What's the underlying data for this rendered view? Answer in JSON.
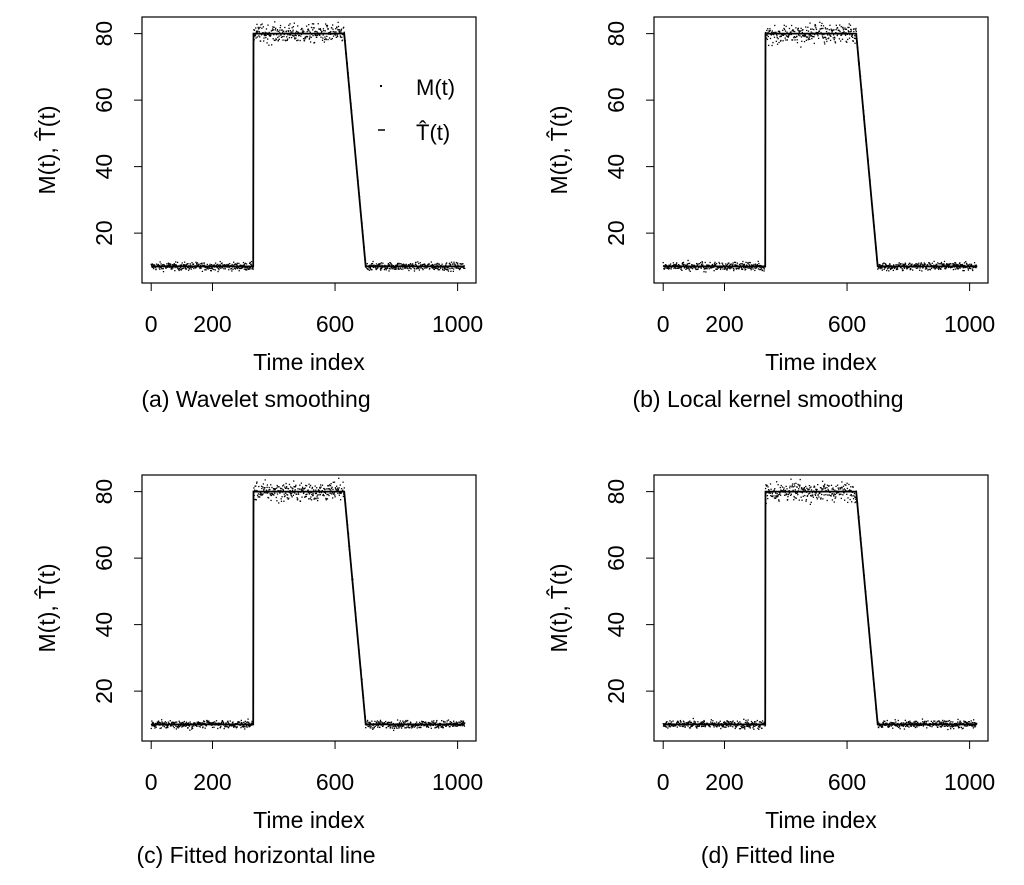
{
  "chart_data": [
    {
      "type": "scatter",
      "panel_label": "(a)",
      "title": "(a) Wavelet smoothing",
      "method": "Wavelet smoothing",
      "xlabel": "Time index",
      "ylabel": "M(t), T̂(t)",
      "xlim": [
        -30,
        1060
      ],
      "ylim": [
        5,
        85
      ],
      "x_ticks": [
        0,
        200,
        600,
        1000
      ],
      "y_ticks": [
        20,
        40,
        60,
        80
      ],
      "legend": {
        "position": "top-right",
        "entries": [
          "M(t)",
          "T̂(t)"
        ]
      },
      "series": [
        {
          "name": "M(t)",
          "style": "points",
          "noise_sd": 1.0,
          "n": 1024
        },
        {
          "name": "T̂(t)",
          "style": "line",
          "x": [
            0,
            333,
            334,
            630,
            700,
            1023
          ],
          "y": [
            10,
            10,
            80,
            80,
            10,
            10
          ]
        }
      ]
    },
    {
      "type": "scatter",
      "panel_label": "(b)",
      "title": "(b) Local kernel smoothing",
      "method": "Local kernel smoothing",
      "xlabel": "Time index",
      "ylabel": "M(t), T̂(t)",
      "xlim": [
        -30,
        1060
      ],
      "ylim": [
        5,
        85
      ],
      "x_ticks": [
        0,
        200,
        600,
        1000
      ],
      "y_ticks": [
        20,
        40,
        60,
        80
      ],
      "series": [
        {
          "name": "M(t)",
          "style": "points",
          "noise_sd": 1.0,
          "n": 1024
        },
        {
          "name": "T̂(t)",
          "style": "line",
          "x": [
            0,
            333,
            334,
            630,
            700,
            1023
          ],
          "y": [
            10,
            10,
            80,
            80,
            10,
            10
          ]
        }
      ]
    },
    {
      "type": "scatter",
      "panel_label": "(c)",
      "title": "(c) Fitted horizontal line",
      "method": "Fitted horizontal line",
      "xlabel": "Time index",
      "ylabel": "M(t), T̂(t)",
      "xlim": [
        -30,
        1060
      ],
      "ylim": [
        5,
        85
      ],
      "x_ticks": [
        0,
        200,
        600,
        1000
      ],
      "y_ticks": [
        20,
        40,
        60,
        80
      ],
      "series": [
        {
          "name": "M(t)",
          "style": "points",
          "noise_sd": 1.0,
          "n": 1024
        },
        {
          "name": "T̂(t)",
          "style": "line",
          "x": [
            0,
            333,
            334,
            630,
            700,
            1023
          ],
          "y": [
            10,
            10,
            80,
            80,
            10,
            10
          ]
        }
      ]
    },
    {
      "type": "scatter",
      "panel_label": "(d)",
      "title": "(d) Fitted line",
      "method": "Fitted line",
      "xlabel": "Time index",
      "ylabel": "M(t), T̂(t)",
      "xlim": [
        -30,
        1060
      ],
      "ylim": [
        5,
        85
      ],
      "x_ticks": [
        0,
        200,
        600,
        1000
      ],
      "y_ticks": [
        20,
        40,
        60,
        80
      ],
      "series": [
        {
          "name": "M(t)",
          "style": "points",
          "noise_sd": 1.0,
          "n": 1024
        },
        {
          "name": "T̂(t)",
          "style": "line",
          "x": [
            0,
            333,
            334,
            630,
            700,
            1023
          ],
          "y": [
            10,
            10,
            80,
            80,
            10,
            10
          ]
        }
      ]
    }
  ]
}
